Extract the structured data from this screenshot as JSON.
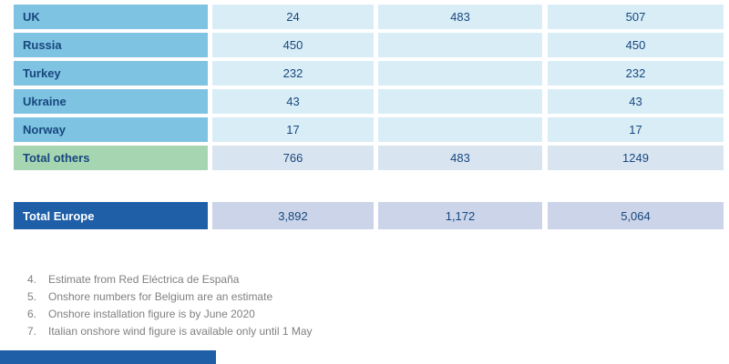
{
  "table": {
    "rows": [
      {
        "country": "UK",
        "col1": "24",
        "col2": "483",
        "col3": "507"
      },
      {
        "country": "Russia",
        "col1": "450",
        "col2": "",
        "col3": "450"
      },
      {
        "country": "Turkey",
        "col1": "232",
        "col2": "",
        "col3": "232"
      },
      {
        "country": "Ukraine",
        "col1": "43",
        "col2": "",
        "col3": "43"
      },
      {
        "country": "Norway",
        "col1": "17",
        "col2": "",
        "col3": "17"
      }
    ],
    "total_others": {
      "label": "Total others",
      "col1": "766",
      "col2": "483",
      "col3": "1249"
    },
    "total_europe": {
      "label": "Total Europe",
      "col1": "3,892",
      "col2": "1,172",
      "col3": "5,064"
    }
  },
  "footnotes": [
    {
      "num": "4.",
      "text": "Estimate from Red Eléctrica de España"
    },
    {
      "num": "5.",
      "text": "Onshore numbers for Belgium are an estimate"
    },
    {
      "num": "6.",
      "text": "Onshore installation figure is by June 2020"
    },
    {
      "num": "7.",
      "text": "Italian onshore wind figure is available only until 1 May"
    }
  ],
  "colors": {
    "country_cell_blue": "#7EC3E2",
    "data_cell_blue": "#D9EDF7",
    "total_others_green": "#A6D5B2",
    "total_others_data_blue": "#D9E4F1",
    "total_europe_dark_blue": "#1F5FA8",
    "total_europe_data_blue": "#CBD4E9",
    "table_text_navy": "#17477D",
    "footnote_gray": "#808080"
  }
}
